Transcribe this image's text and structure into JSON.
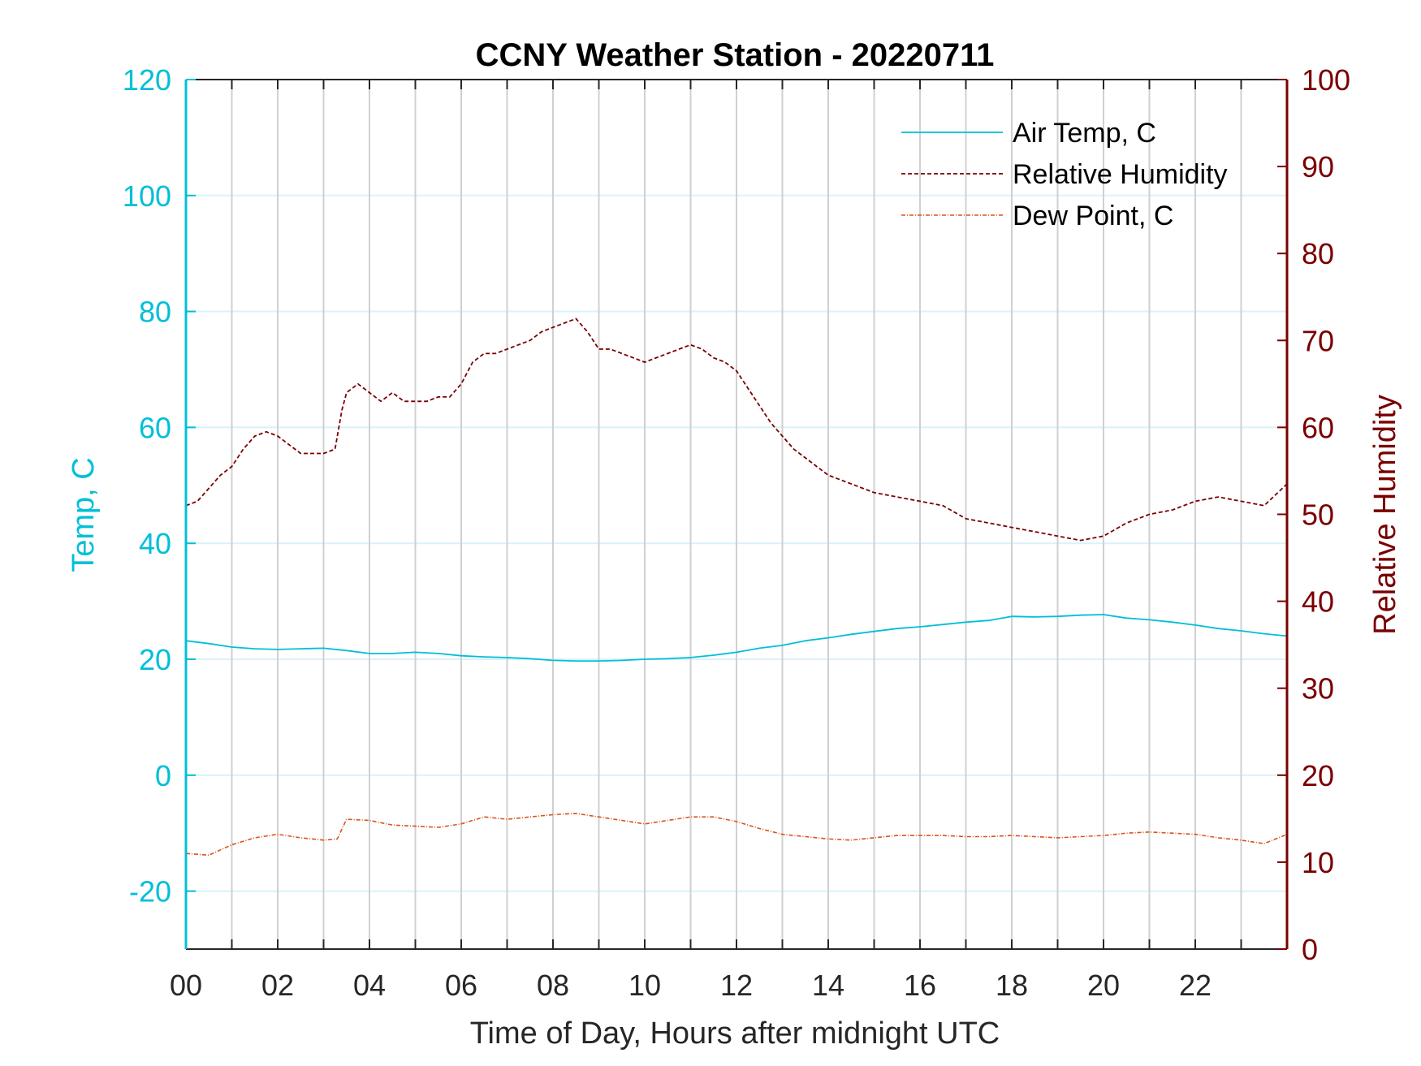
{
  "chart_data": {
    "type": "line",
    "title": "CCNY Weather Station - 20220711",
    "xlabel": "Time of Day, Hours after midnight UTC",
    "ylabel_left": "Temp, C",
    "ylabel_right": "Relative Humidity",
    "xlim": [
      0,
      24
    ],
    "ylim_left": [
      -30,
      120
    ],
    "ylim_right": [
      0,
      100
    ],
    "x_ticks": [
      0,
      2,
      4,
      6,
      8,
      10,
      12,
      14,
      16,
      18,
      20,
      22
    ],
    "x_tick_labels": [
      "00",
      "02",
      "04",
      "06",
      "08",
      "10",
      "12",
      "14",
      "16",
      "18",
      "20",
      "22"
    ],
    "y_left_ticks": [
      120,
      100,
      80,
      60,
      40,
      20,
      0,
      -20
    ],
    "y_left_tick_labels": [
      "120",
      "100",
      "80",
      "60",
      "40",
      "20",
      "0",
      "-20"
    ],
    "y_right_ticks": [
      100,
      90,
      80,
      70,
      60,
      50,
      40,
      30,
      20,
      10,
      0
    ],
    "y_right_tick_labels": [
      "100",
      "90",
      "80",
      "70",
      "60",
      "50",
      "40",
      "30",
      "20",
      "10",
      "0"
    ],
    "grid": "on",
    "legend_position": "top-right",
    "colors": {
      "left_axis": "#00BFD8",
      "right_axis": "#7A0000",
      "air_temp": "#00BFD8",
      "humidity": "#7A0000",
      "dew_point": "#D95319",
      "grid_vertical": "#D0D0D0",
      "grid_horizontal": "#D8F2F8"
    },
    "series": [
      {
        "name": "Air Temp, C",
        "axis": "left",
        "style": "solid",
        "x": [
          0,
          0.5,
          1,
          1.5,
          2,
          2.5,
          3,
          3.5,
          4,
          4.5,
          5,
          5.5,
          6,
          6.5,
          7,
          7.5,
          8,
          8.5,
          9,
          9.5,
          10,
          10.5,
          11,
          11.5,
          12,
          12.5,
          13,
          13.5,
          14,
          14.5,
          15,
          15.5,
          16,
          16.5,
          17,
          17.5,
          18,
          18.5,
          19,
          19.5,
          20,
          20.5,
          21,
          21.5,
          22,
          22.5,
          23,
          23.5,
          24
        ],
        "values": [
          23.2,
          22.7,
          22.1,
          21.8,
          21.7,
          21.8,
          21.9,
          21.5,
          21.0,
          21.0,
          21.2,
          21.0,
          20.6,
          20.4,
          20.3,
          20.1,
          19.8,
          19.7,
          19.7,
          19.8,
          20.0,
          20.1,
          20.3,
          20.7,
          21.2,
          21.9,
          22.4,
          23.2,
          23.7,
          24.3,
          24.8,
          25.3,
          25.6,
          26.0,
          26.4,
          26.7,
          27.4,
          27.3,
          27.4,
          27.6,
          27.7,
          27.1,
          26.8,
          26.4,
          25.9,
          25.3,
          24.9,
          24.4,
          24.0
        ]
      },
      {
        "name": "Relative Humidity",
        "axis": "right",
        "style": "dashed",
        "x": [
          0,
          0.25,
          0.5,
          0.75,
          1,
          1.25,
          1.5,
          1.75,
          2,
          2.25,
          2.5,
          2.75,
          3,
          3.25,
          3.4,
          3.5,
          3.75,
          4,
          4.25,
          4.5,
          4.75,
          5,
          5.25,
          5.5,
          5.75,
          6,
          6.25,
          6.5,
          6.75,
          7,
          7.25,
          7.5,
          7.75,
          8,
          8.25,
          8.5,
          8.75,
          9,
          9.25,
          9.5,
          9.75,
          10,
          10.25,
          10.5,
          10.75,
          11,
          11.25,
          11.5,
          11.75,
          12,
          12.25,
          12.5,
          12.75,
          13,
          13.25,
          13.5,
          13.75,
          14,
          14.5,
          15,
          15.5,
          16,
          16.5,
          17,
          17.5,
          18,
          18.5,
          19,
          19.5,
          20,
          20.5,
          21,
          21.5,
          22,
          22.5,
          23,
          23.5,
          24
        ],
        "values": [
          51,
          51.5,
          53,
          54.5,
          55.5,
          57.5,
          59,
          59.5,
          59,
          58,
          57,
          57,
          57,
          57.5,
          62,
          64,
          65,
          64,
          63,
          64,
          63,
          63,
          63,
          63.5,
          63.5,
          65,
          67.5,
          68.5,
          68.5,
          69,
          69.5,
          70,
          71,
          71.5,
          72,
          72.5,
          71,
          69,
          69,
          68.5,
          68,
          67.5,
          68,
          68.5,
          69,
          69.5,
          69,
          68,
          67.5,
          66.5,
          64.5,
          62.5,
          60.5,
          59,
          57.5,
          56.5,
          55.5,
          54.5,
          53.5,
          52.5,
          52,
          51.5,
          51,
          49.5,
          49,
          48.5,
          48,
          47.5,
          47,
          47.5,
          49,
          50,
          50.5,
          51.5,
          52,
          51.5,
          51,
          53.5
        ]
      },
      {
        "name": "Dew Point, C",
        "axis": "left",
        "style": "dashdot",
        "x": [
          0,
          0.5,
          1,
          1.5,
          2,
          2.5,
          3,
          3.3,
          3.5,
          4,
          4.5,
          5,
          5.5,
          6,
          6.5,
          7,
          7.5,
          8,
          8.5,
          9,
          9.5,
          10,
          10.5,
          11,
          11.5,
          12,
          12.5,
          13,
          13.5,
          14,
          14.5,
          15,
          15.5,
          16,
          16.5,
          17,
          17.5,
          18,
          18.5,
          19,
          19.5,
          20,
          20.5,
          21,
          21.5,
          22,
          22.5,
          23,
          23.5,
          24
        ],
        "values": [
          -13.5,
          -13.8,
          -12.0,
          -10.8,
          -10.2,
          -10.8,
          -11.2,
          -11.0,
          -7.6,
          -7.8,
          -8.6,
          -8.8,
          -9.0,
          -8.4,
          -7.2,
          -7.6,
          -7.2,
          -6.8,
          -6.6,
          -7.2,
          -7.8,
          -8.4,
          -7.8,
          -7.2,
          -7.2,
          -8.0,
          -9.2,
          -10.2,
          -10.6,
          -11.0,
          -11.2,
          -10.8,
          -10.4,
          -10.4,
          -10.4,
          -10.6,
          -10.6,
          -10.4,
          -10.6,
          -10.8,
          -10.6,
          -10.4,
          -10.0,
          -9.8,
          -10.0,
          -10.2,
          -10.8,
          -11.2,
          -11.8,
          -10.2
        ]
      }
    ]
  }
}
